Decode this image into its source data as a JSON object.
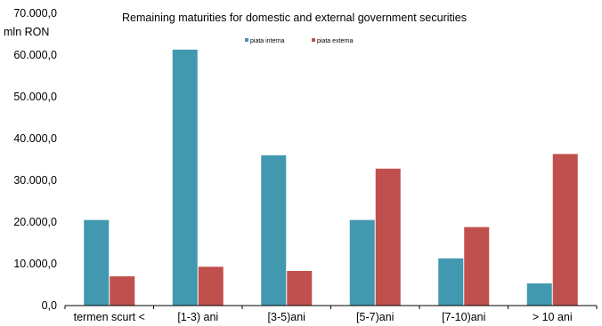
{
  "chart_data": {
    "type": "bar",
    "title": "Remaining maturities for domestic and external government securities",
    "ylabel": "mln RON",
    "ylim": [
      0,
      70000
    ],
    "yticks": [
      "0,0",
      "10.000,0",
      "20.000,0",
      "30.000,0",
      "40.000,0",
      "50.000,0",
      "60.000,0",
      "70.000,0"
    ],
    "categories": [
      "termen scurt <",
      "[1-3) ani",
      "[3-5)ani",
      "[5-7)ani",
      "[7-10)ani",
      "> 10 ani"
    ],
    "series": [
      {
        "name": "piata interna",
        "color": "#4198AF",
        "values": [
          20500,
          61300,
          36000,
          20500,
          11300,
          5300
        ]
      },
      {
        "name": "piata externa",
        "color": "#C0504D",
        "values": [
          7000,
          9300,
          8300,
          32800,
          18800,
          36300
        ]
      }
    ],
    "grid": false,
    "legend": "top-center"
  }
}
